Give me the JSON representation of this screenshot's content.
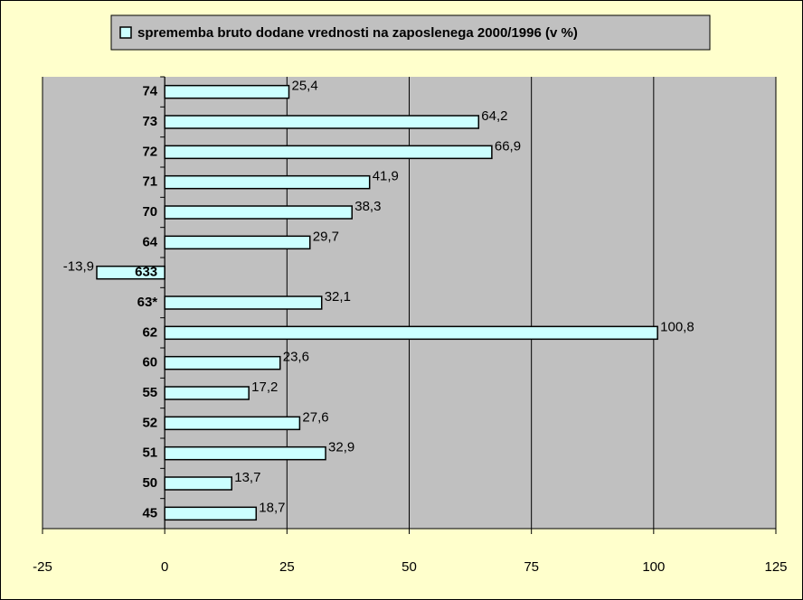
{
  "chart_data": {
    "type": "barh",
    "categories": [
      "74",
      "73",
      "72",
      "71",
      "70",
      "64",
      "633",
      "63*",
      "62",
      "60",
      "55",
      "52",
      "51",
      "50",
      "45"
    ],
    "series": [
      {
        "name": "sprememba bruto dodane vrednosti na zaposlenega 2000/1996 (v %)",
        "color": "#ccffff",
        "values": [
          25.4,
          64.2,
          66.9,
          41.9,
          38.3,
          29.7,
          -13.9,
          32.1,
          100.8,
          23.6,
          17.2,
          27.6,
          32.9,
          13.7,
          18.7
        ],
        "value_labels": [
          "25,4",
          "64,2",
          "66,9",
          "41,9",
          "38,3",
          "29,7",
          "-13,9",
          "32,1",
          "100,8",
          "23,6",
          "17,2",
          "27,6",
          "32,9",
          "13,7",
          "18,7"
        ]
      }
    ],
    "xlim": [
      -25,
      125
    ],
    "xticks": [
      -25,
      0,
      25,
      50,
      75,
      100,
      125
    ],
    "grid": true,
    "legend": "top"
  }
}
